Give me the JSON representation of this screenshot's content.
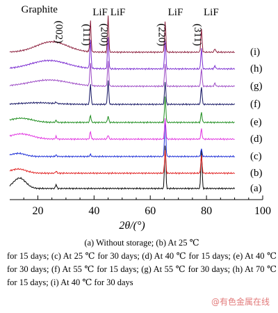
{
  "chart_data": {
    "type": "line",
    "xlabel": "2θ/(°)",
    "xlim": [
      10,
      100
    ],
    "xticks": [
      20,
      40,
      60,
      80,
      100
    ],
    "grid": false,
    "legend": "none",
    "peak_labels": [
      {
        "compound": "Graphite",
        "hkl": "(002)",
        "x": 26.5
      },
      {
        "compound": "LiF",
        "hkl": "(111)",
        "x": 38.7
      },
      {
        "compound": "LiF",
        "hkl": "(200)",
        "x": 45.0
      },
      {
        "compound": "LiF",
        "hkl": "(220)",
        "x": 65.5
      },
      {
        "compound": "LiF",
        "hkl": "(311)",
        "x": 78.2
      }
    ],
    "series": [
      {
        "name": "(a)",
        "color": "#000000",
        "hump": [
          13.5,
          2.2,
          20
        ],
        "peaks": [
          [
            26.5,
            8
          ],
          [
            65.3,
            85
          ],
          [
            78.2,
            75
          ]
        ]
      },
      {
        "name": "(b)",
        "color": "#e01b1b",
        "hump": [
          13.0,
          2.8,
          8
        ],
        "peaks": [
          [
            26.5,
            4
          ],
          [
            65.3,
            45
          ],
          [
            78.2,
            35
          ]
        ]
      },
      {
        "name": "(c)",
        "color": "#1a2bd6",
        "hump": [
          13.0,
          2.5,
          6
        ],
        "peaks": [
          [
            26.5,
            3
          ],
          [
            38.7,
            4
          ],
          [
            65.3,
            75
          ],
          [
            78.2,
            15
          ]
        ]
      },
      {
        "name": "(d)",
        "color": "#e034e0",
        "hump": [
          14.0,
          4.0,
          10
        ],
        "peaks": [
          [
            26.5,
            5
          ],
          [
            38.7,
            15
          ],
          [
            45.0,
            8
          ],
          [
            65.3,
            40
          ],
          [
            78.2,
            20
          ]
        ]
      },
      {
        "name": "(e)",
        "color": "#1c8c1c",
        "hump": [
          14.0,
          4.0,
          8
        ],
        "peaks": [
          [
            26.5,
            4
          ],
          [
            38.7,
            14
          ],
          [
            45.0,
            12
          ],
          [
            65.3,
            50
          ],
          [
            78.2,
            20
          ]
        ]
      },
      {
        "name": "(f)",
        "color": "#101060",
        "hump": [
          20.0,
          6.0,
          3
        ],
        "peaks": [
          [
            26.5,
            3
          ],
          [
            38.7,
            40
          ],
          [
            45.0,
            45
          ],
          [
            65.3,
            45
          ],
          [
            78.2,
            35
          ]
        ]
      },
      {
        "name": "(g)",
        "color": "#9b48c4",
        "hump": [
          24.0,
          7.0,
          12
        ],
        "peaks": [
          [
            38.7,
            45
          ],
          [
            45.0,
            48
          ],
          [
            65.3,
            45
          ],
          [
            78.2,
            35
          ],
          [
            83.0,
            6
          ]
        ]
      },
      {
        "name": "(h)",
        "color": "#7a2bd0",
        "hump": [
          24.0,
          6.5,
          16
        ],
        "peaks": [
          [
            38.7,
            55
          ],
          [
            45.0,
            60
          ],
          [
            65.3,
            55
          ],
          [
            78.2,
            40
          ],
          [
            83.0,
            6
          ]
        ]
      },
      {
        "name": "(i)",
        "color": "#8a1c3a",
        "hump": [
          25.0,
          5.5,
          20
        ],
        "peaks": [
          [
            38.7,
            60
          ],
          [
            45.0,
            70
          ],
          [
            65.3,
            60
          ],
          [
            78.2,
            45
          ],
          [
            83.0,
            7
          ]
        ]
      }
    ]
  },
  "caption": {
    "line1": "(a) Without storage; (b) At 25 ℃",
    "body": "for 15 days; (c) At 25 ℃ for 30 days; (d) At 40 ℃ for 15 days; (e) At 40 ℃ for 30 days; (f) At 55 ℃ for 15 days; (g) At 55 ℃ for 30 days; (h) At 70 ℃ for 15 days; (i) At 40 ℃ for 30 days"
  },
  "watermark": "@有色金属在线"
}
